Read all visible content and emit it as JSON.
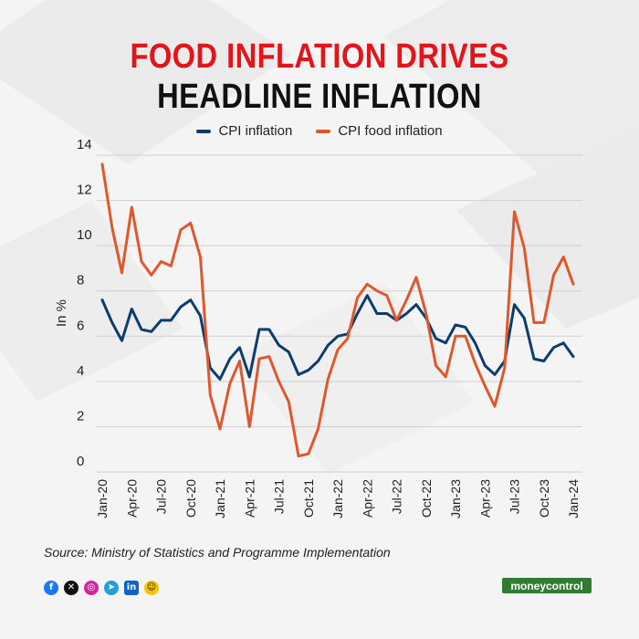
{
  "title": {
    "line1": "FOOD INFLATION DRIVES",
    "line2": "HEADLINE INFLATION"
  },
  "colors": {
    "title_accent": "#e3151b",
    "cpi": "#0d3c6e",
    "food": "#e0572b",
    "brand": "#2e7d32"
  },
  "legend": [
    {
      "label": "CPI inflation",
      "color": "#0d3c6e"
    },
    {
      "label": "CPI food inflation",
      "color": "#e0572b"
    }
  ],
  "source": "Source: Ministry of Statistics and Programme Implementation",
  "social_icons": [
    "facebook-icon",
    "x-icon",
    "instagram-icon",
    "telegram-icon",
    "linkedin-icon",
    "snapchat-icon"
  ],
  "brand": "moneycontrol",
  "chart_data": {
    "type": "line",
    "ylabel": "In %",
    "xlabel": "",
    "ylim": [
      0,
      14
    ],
    "yticks": [
      0,
      2,
      4,
      6,
      8,
      10,
      12,
      14
    ],
    "grid": true,
    "legend_position": "top-center",
    "x": [
      "Jan-20",
      "Feb-20",
      "Mar-20",
      "Apr-20",
      "May-20",
      "Jun-20",
      "Jul-20",
      "Aug-20",
      "Sep-20",
      "Oct-20",
      "Nov-20",
      "Dec-20",
      "Jan-21",
      "Feb-21",
      "Mar-21",
      "Apr-21",
      "May-21",
      "Jun-21",
      "Jul-21",
      "Aug-21",
      "Sep-21",
      "Oct-21",
      "Nov-21",
      "Dec-21",
      "Jan-22",
      "Feb-22",
      "Mar-22",
      "Apr-22",
      "May-22",
      "Jun-22",
      "Jul-22",
      "Aug-22",
      "Sep-22",
      "Oct-22",
      "Nov-22",
      "Dec-22",
      "Jan-23",
      "Feb-23",
      "Mar-23",
      "Apr-23",
      "May-23",
      "Jun-23",
      "Jul-23",
      "Aug-23",
      "Sep-23",
      "Oct-23",
      "Nov-23",
      "Dec-23",
      "Jan-24"
    ],
    "tick_labels": [
      "Jan-20",
      "Apr-20",
      "Jul-20",
      "Oct-20",
      "Jan-21",
      "Apr-21",
      "Jul-21",
      "Oct-21",
      "Jan-22",
      "Apr-22",
      "Jul-22",
      "Oct-22",
      "Jan-23",
      "Apr-23",
      "Jul-23",
      "Oct-23",
      "Jan-24"
    ],
    "series": [
      {
        "name": "CPI inflation",
        "color": "#0d3c6e",
        "values": [
          7.6,
          6.6,
          5.8,
          7.2,
          6.3,
          6.2,
          6.7,
          6.7,
          7.3,
          7.6,
          6.9,
          4.6,
          4.1,
          5.0,
          5.5,
          4.2,
          6.3,
          6.3,
          5.6,
          5.3,
          4.3,
          4.5,
          4.9,
          5.6,
          6.0,
          6.1,
          7.0,
          7.8,
          7.0,
          7.0,
          6.7,
          7.0,
          7.4,
          6.8,
          5.9,
          5.7,
          6.5,
          6.4,
          5.7,
          4.7,
          4.3,
          4.9,
          7.4,
          6.8,
          5.0,
          4.9,
          5.5,
          5.7,
          5.1
        ]
      },
      {
        "name": "CPI food inflation",
        "color": "#e0572b",
        "values": [
          13.6,
          10.8,
          8.8,
          11.7,
          9.3,
          8.7,
          9.3,
          9.1,
          10.7,
          11.0,
          9.5,
          3.4,
          1.9,
          3.9,
          4.9,
          2.0,
          5.0,
          5.1,
          4.0,
          3.1,
          0.7,
          0.8,
          1.9,
          4.1,
          5.4,
          5.9,
          7.7,
          8.3,
          8.0,
          7.8,
          6.7,
          7.6,
          8.6,
          7.0,
          4.7,
          4.2,
          6.0,
          6.0,
          4.8,
          3.8,
          2.9,
          4.6,
          11.5,
          9.9,
          6.6,
          6.6,
          8.7,
          9.5,
          8.3
        ]
      }
    ]
  }
}
